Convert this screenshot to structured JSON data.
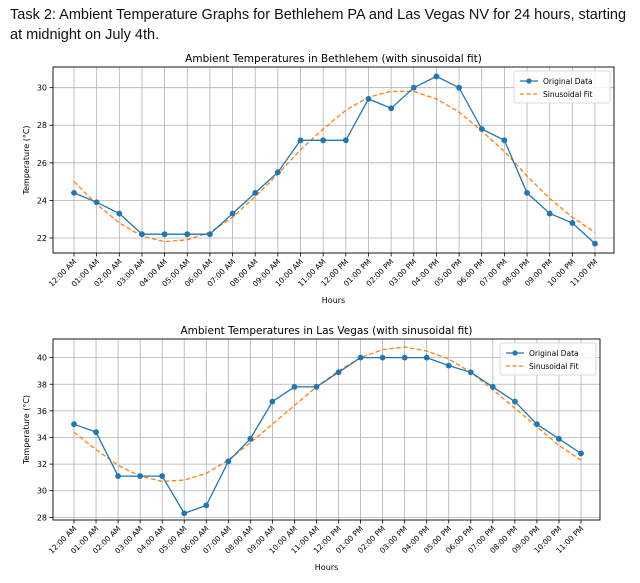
{
  "header": {
    "title": "Task 2: Ambient Temperature Graphs for Bethlehem PA and Las Vegas NV for 24 hours, starting at midnight on July 4th."
  },
  "colors": {
    "original": "#1f77b4",
    "fit": "#ff7f0e",
    "grid": "#b0b0b0"
  },
  "chart_data": [
    {
      "type": "line",
      "title": "Ambient Temperatures in Bethlehem (with sinusoidal fit)",
      "xlabel": "Hours",
      "ylabel": "Temperature (°C)",
      "categories": [
        "12:00 AM",
        "01:00 AM",
        "02:00 AM",
        "03:00 AM",
        "04:00 AM",
        "05:00 AM",
        "06:00 AM",
        "07:00 AM",
        "08:00 AM",
        "09:00 AM",
        "10:00 AM",
        "11:00 AM",
        "12:00 PM",
        "01:00 PM",
        "02:00 PM",
        "03:00 PM",
        "04:00 PM",
        "05:00 PM",
        "06:00 PM",
        "07:00 PM",
        "08:00 PM",
        "09:00 PM",
        "10:00 PM",
        "11:00 PM"
      ],
      "yticks": [
        22,
        24,
        26,
        28,
        30
      ],
      "ylim": [
        21.2,
        31.1
      ],
      "grid": true,
      "legend": "top-right",
      "series": [
        {
          "name": "Original Data",
          "style": "solid-marker",
          "values": [
            24.4,
            23.9,
            23.3,
            22.2,
            22.2,
            22.2,
            22.2,
            23.3,
            24.4,
            25.5,
            27.2,
            27.2,
            27.2,
            29.4,
            28.9,
            30.0,
            30.6,
            30.0,
            27.8,
            27.2,
            24.4,
            23.3,
            22.8,
            21.7
          ]
        },
        {
          "name": "Sinusoidal Fit",
          "style": "dashed",
          "values": [
            25.0,
            23.8,
            22.8,
            22.1,
            21.8,
            21.9,
            22.3,
            23.1,
            24.2,
            25.4,
            26.7,
            27.8,
            28.8,
            29.5,
            29.8,
            29.8,
            29.4,
            28.7,
            27.7,
            26.6,
            25.3,
            24.1,
            23.1,
            22.3
          ]
        }
      ]
    },
    {
      "type": "line",
      "title": "Ambient Temperatures in Las Vegas (with sinusoidal fit)",
      "xlabel": "Hours",
      "ylabel": "Temperature (°C)",
      "categories": [
        "12:00 AM",
        "01:00 AM",
        "02:00 AM",
        "03:00 AM",
        "04:00 AM",
        "05:00 AM",
        "06:00 AM",
        "07:00 AM",
        "08:00 AM",
        "09:00 AM",
        "10:00 AM",
        "11:00 AM",
        "12:00 PM",
        "01:00 PM",
        "02:00 PM",
        "03:00 PM",
        "04:00 PM",
        "05:00 PM",
        "06:00 PM",
        "07:00 PM",
        "08:00 PM",
        "09:00 PM",
        "10:00 PM",
        "11:00 PM"
      ],
      "yticks": [
        28,
        30,
        32,
        34,
        36,
        38,
        40
      ],
      "ylim": [
        27.8,
        41.4
      ],
      "grid": true,
      "legend": "top-right",
      "series": [
        {
          "name": "Original Data",
          "style": "solid-marker",
          "values": [
            35.0,
            34.4,
            31.1,
            31.1,
            31.1,
            28.3,
            28.9,
            32.2,
            33.9,
            36.7,
            37.8,
            37.8,
            38.9,
            40.0,
            40.0,
            40.0,
            40.0,
            39.4,
            38.9,
            37.8,
            36.7,
            35.0,
            33.9,
            32.8
          ]
        },
        {
          "name": "Sinusoidal Fit",
          "style": "dashed",
          "values": [
            34.4,
            33.1,
            31.9,
            31.1,
            30.7,
            30.8,
            31.3,
            32.3,
            33.6,
            35.0,
            36.4,
            37.8,
            39.0,
            40.0,
            40.6,
            40.8,
            40.5,
            39.9,
            38.9,
            37.6,
            36.2,
            34.8,
            33.4,
            32.3
          ]
        }
      ]
    }
  ]
}
